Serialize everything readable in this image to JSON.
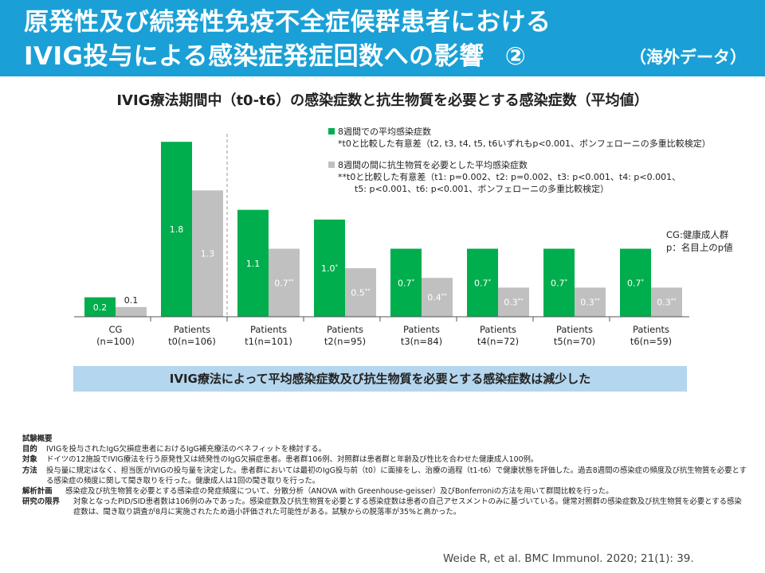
{
  "header": {
    "title_line1": "原発性及び続発性免疫不全症候群患者における",
    "title_line2": "IVIG投与による感染症発症回数への影響",
    "title_number": "②",
    "note": "（海外データ）"
  },
  "chart_data": {
    "type": "bar",
    "title": "IVIG療法期間中（t0-t6）の感染症数と抗生物質を必要とする感染症数（平均値）",
    "categories": [
      {
        "line1": "CG",
        "line2": "(n=100)"
      },
      {
        "line1": "Patients",
        "line2": "t0(n=106)"
      },
      {
        "line1": "Patients",
        "line2": "t1(n=101)"
      },
      {
        "line1": "Patients",
        "line2": "t2(n=95)"
      },
      {
        "line1": "Patients",
        "line2": "t3(n=84)"
      },
      {
        "line1": "Patients",
        "line2": "t4(n=72)"
      },
      {
        "line1": "Patients",
        "line2": "t5(n=70)"
      },
      {
        "line1": "Patients",
        "line2": "t6(n=59)"
      }
    ],
    "series": [
      {
        "color": "#00ae4d",
        "values": [
          0.2,
          1.8,
          1.1,
          1.0,
          0.7,
          0.7,
          0.7,
          0.7
        ],
        "labels": [
          "0.2",
          "1.8",
          "1.1",
          "1.0",
          "0.7",
          "0.7",
          "0.7",
          "0.7"
        ],
        "marks": [
          "",
          "",
          "",
          "*",
          "*",
          "*",
          "*",
          "*"
        ]
      },
      {
        "color": "#c0c0c0",
        "values": [
          0.1,
          1.3,
          0.7,
          0.5,
          0.4,
          0.3,
          0.3,
          0.3
        ],
        "labels": [
          "0.1",
          "1.3",
          "0.7",
          "0.5",
          "0.4",
          "0.3",
          "0.3",
          "0.3"
        ],
        "marks": [
          "",
          "",
          "**",
          "**",
          "**",
          "**",
          "**",
          "**"
        ]
      }
    ],
    "ylim": [
      0,
      1.9
    ],
    "grid": false,
    "divider_after_category": 1,
    "legend_position": "top-right"
  },
  "legend": {
    "items": [
      {
        "color": "#00ae4d",
        "label": "8週間での平均感染症数",
        "notes": [
          "*t0と比較した有意差（t2, t3, t4, t5, t6いずれもp<0.001、ボンフェローニの多重比較検定）"
        ]
      },
      {
        "color": "#c0c0c0",
        "label": "8週間の間に抗生物質を必要とした平均感染症数",
        "notes": [
          "**t0と比較した有意差（t1: p=0.002、t2: p=0.002、t3: p<0.001、t4: p<0.001、",
          "t5: p<0.001、t6: p<0.001、ボンフェローニの多重比較検定）"
        ]
      }
    ]
  },
  "abbreviations": [
    "CG:健康成人群",
    "p：名目上のp値"
  ],
  "conclusion": "IVIG療法によって平均感染症数及び抗生物質を必要とする感染症数は減少した",
  "summary": {
    "heading": "試験概要",
    "rows": [
      {
        "key": "目的",
        "text": "IVIGを投与されたIgG欠損症患者におけるIgG補充療法のベネフィットを検討する。"
      },
      {
        "key": "対象",
        "text": "ドイツの12施設でIVIG療法を行う原発性又は続発性のIgG欠損症患者。患者群106例、対照群は患者群と年齢及び性比を合わせた健康成人100例。"
      },
      {
        "key": "方法",
        "text": "投与量に規定はなく、担当医がIVIGの投与量を決定した。患者群においては最初のIgG投与前（t0）に面接をし、治療の過程（t1-t6）で健康状態を評価した。過去8週間の感染症の頻度及び抗生物質を必要とする感染症の頻度に関して聞き取りを行った。健康成人は1回の聞き取りを行った。"
      },
      {
        "key": "解析計画",
        "text": "感染症及び抗生物質を必要とする感染症の発症頻度について、分散分析（ANOVA with Greenhouse-geisser）及びBonferroniの方法を用いて群間比較を行った。"
      },
      {
        "key": "研究の限界",
        "text": "対象となったPID/SID患者数は106例のみであった。感染症数及び抗生物質を必要とする感染症数は患者の自己アセスメントのみに基づいている。健常対照群の感染症数及び抗生物質を必要とする感染症数は、聞き取り調査が8月に実施されたため過小評価された可能性がある。試験からの脱落率が35%と高かった。"
      }
    ]
  },
  "citation": "Weide R, et al. BMC Immunol. 2020; 21(1): 39."
}
